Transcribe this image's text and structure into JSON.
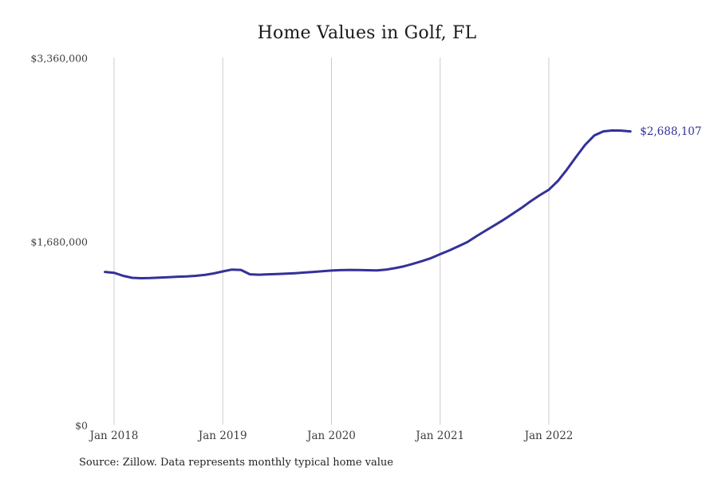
{
  "title": "Home Values in Golf, FL",
  "source_note": "Source: Zillow. Data represents monthly typical home value",
  "colors": {
    "line": "#333199",
    "grid": "#cccccc",
    "title_text": "#1a1a1a",
    "tick_text": "#3d3d3d",
    "end_label_text": "#333199"
  },
  "chart_data": {
    "type": "line",
    "title": "Home Values in Golf, FL",
    "xlabel": "",
    "ylabel": "",
    "ylim": [
      0,
      3360000
    ],
    "grid": "vertical-only",
    "legend": "none",
    "end_label": "$2,688,107",
    "final_value": 2688107,
    "y_ticks": [
      {
        "value": 0,
        "label": "$0"
      },
      {
        "value": 1680000,
        "label": "$1,680,000"
      },
      {
        "value": 3360000,
        "label": "$3,360,000"
      }
    ],
    "x_ticks": [
      {
        "index": 1,
        "label": "Jan 2018"
      },
      {
        "index": 13,
        "label": "Jan 2019"
      },
      {
        "index": 25,
        "label": "Jan 2020"
      },
      {
        "index": 37,
        "label": "Jan 2021"
      },
      {
        "index": 49,
        "label": "Jan 2022"
      }
    ],
    "x": [
      "Dec 2017",
      "Jan 2018",
      "Feb 2018",
      "Mar 2018",
      "Apr 2018",
      "May 2018",
      "Jun 2018",
      "Jul 2018",
      "Aug 2018",
      "Sep 2018",
      "Oct 2018",
      "Nov 2018",
      "Dec 2018",
      "Jan 2019",
      "Feb 2019",
      "Mar 2019",
      "Apr 2019",
      "May 2019",
      "Jun 2019",
      "Jul 2019",
      "Aug 2019",
      "Sep 2019",
      "Oct 2019",
      "Nov 2019",
      "Dec 2019",
      "Jan 2020",
      "Feb 2020",
      "Mar 2020",
      "Apr 2020",
      "May 2020",
      "Jun 2020",
      "Jul 2020",
      "Aug 2020",
      "Sep 2020",
      "Oct 2020",
      "Nov 2020",
      "Dec 2020",
      "Jan 2021",
      "Feb 2021",
      "Mar 2021",
      "Apr 2021",
      "May 2021",
      "Jun 2021",
      "Jul 2021",
      "Aug 2021",
      "Sep 2021",
      "Oct 2021",
      "Nov 2021",
      "Dec 2021",
      "Jan 2022",
      "Feb 2022",
      "Mar 2022",
      "Apr 2022",
      "May 2022",
      "Jun 2022",
      "Jul 2022",
      "Aug 2022",
      "Sep 2022",
      "Oct 2022"
    ],
    "values": [
      1404000,
      1396000,
      1368000,
      1350000,
      1346000,
      1348000,
      1352000,
      1356000,
      1360000,
      1363000,
      1368000,
      1376000,
      1390000,
      1408000,
      1425000,
      1422000,
      1382000,
      1378000,
      1382000,
      1385000,
      1388000,
      1392000,
      1398000,
      1404000,
      1410000,
      1416000,
      1420000,
      1422000,
      1421000,
      1419000,
      1417000,
      1424000,
      1438000,
      1455000,
      1478000,
      1502000,
      1530000,
      1566000,
      1600000,
      1638000,
      1676000,
      1730000,
      1780000,
      1830000,
      1880000,
      1935000,
      1990000,
      2050000,
      2105000,
      2155000,
      2235000,
      2340000,
      2455000,
      2565000,
      2650000,
      2688000,
      2697000,
      2695000,
      2688107
    ]
  }
}
